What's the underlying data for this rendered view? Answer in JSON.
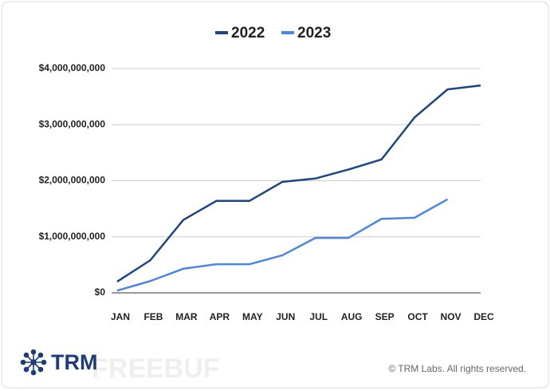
{
  "chart_data": {
    "type": "line",
    "categories": [
      "JAN",
      "FEB",
      "MAR",
      "APR",
      "MAY",
      "JUN",
      "JUL",
      "AUG",
      "SEP",
      "OCT",
      "NOV",
      "DEC"
    ],
    "series": [
      {
        "name": "2022",
        "color": "#1c4587",
        "values": [
          200000000,
          580000000,
          1300000000,
          1640000000,
          1640000000,
          1980000000,
          2040000000,
          2200000000,
          2380000000,
          3130000000,
          3630000000,
          3700000000
        ]
      },
      {
        "name": "2023",
        "color": "#4a86e8",
        "values": [
          40000000,
          210000000,
          430000000,
          510000000,
          510000000,
          670000000,
          980000000,
          980000000,
          1320000000,
          1340000000,
          1670000000,
          null
        ]
      }
    ],
    "ylim": [
      0,
      4000000000
    ],
    "yticks": [
      {
        "value": 0,
        "label": "$0"
      },
      {
        "value": 1000000000,
        "label": "$1,000,000,000"
      },
      {
        "value": 2000000000,
        "label": "$2,000,000,000"
      },
      {
        "value": 3000000000,
        "label": "$3,000,000,000"
      },
      {
        "value": 4000000000,
        "label": "$4,000,000,000"
      }
    ],
    "grid": true,
    "legend": "top"
  },
  "footer": {
    "brand": "TRM",
    "watermark": "FREEBUF",
    "copyright": "© TRM Labs. All rights reserved."
  }
}
